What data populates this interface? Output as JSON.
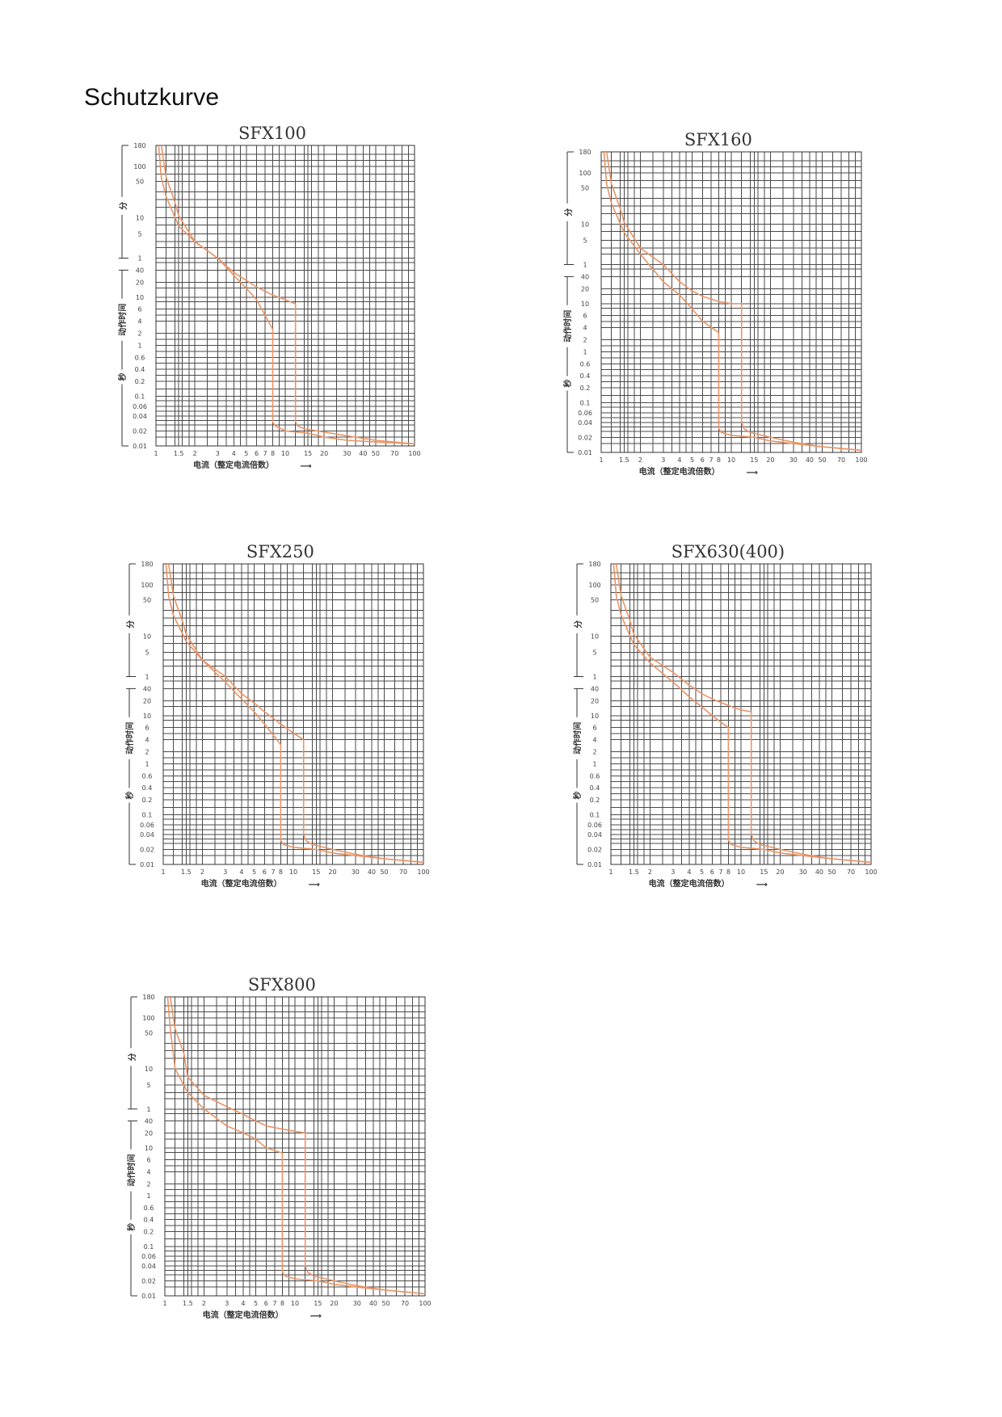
{
  "page": {
    "heading": "Schutzkurve"
  },
  "colors": {
    "curve": "#e89466",
    "grid": "#4a4a4a",
    "text": "#333333"
  },
  "axis_common": {
    "xlabel": "电流（整定电流倍数）",
    "xlabel_arrow": "⟶",
    "x_ticks": [
      {
        "v": 1,
        "label": "1"
      },
      {
        "v": 1.5,
        "label": "1.5"
      },
      {
        "v": 2,
        "label": "2"
      },
      {
        "v": 3,
        "label": "3"
      },
      {
        "v": 4,
        "label": "4"
      },
      {
        "v": 5,
        "label": "5"
      },
      {
        "v": 6,
        "label": "6"
      },
      {
        "v": 7,
        "label": "7"
      },
      {
        "v": 8,
        "label": "8"
      },
      {
        "v": 10,
        "label": "10"
      },
      {
        "v": 15,
        "label": "15"
      },
      {
        "v": 20,
        "label": "20"
      },
      {
        "v": 30,
        "label": "30"
      },
      {
        "v": 40,
        "label": "40"
      },
      {
        "v": 50,
        "label": "50"
      },
      {
        "v": 70,
        "label": "70"
      },
      {
        "v": 100,
        "label": "100"
      }
    ],
    "y_ticks": [
      {
        "label": "180",
        "unit": "min"
      },
      {
        "label": "100",
        "unit": "min"
      },
      {
        "label": "50",
        "unit": "min"
      },
      {
        "label": "10",
        "unit": "min"
      },
      {
        "label": "5",
        "unit": "min"
      },
      {
        "label": "1",
        "unit": "min"
      },
      {
        "label": "40",
        "unit": "s"
      },
      {
        "label": "20",
        "unit": "s"
      },
      {
        "label": "10",
        "unit": "s"
      },
      {
        "label": "6",
        "unit": "s"
      },
      {
        "label": "4",
        "unit": "s"
      },
      {
        "label": "2",
        "unit": "s"
      },
      {
        "label": "1",
        "unit": "s"
      },
      {
        "label": "0.6",
        "unit": "s"
      },
      {
        "label": "0.4",
        "unit": "s"
      },
      {
        "label": "0.2",
        "unit": "s"
      },
      {
        "label": "0.1",
        "unit": "s"
      },
      {
        "label": "0.06",
        "unit": "s"
      },
      {
        "label": "0.04",
        "unit": "s"
      },
      {
        "label": "0.02",
        "unit": "s"
      },
      {
        "label": "0.01",
        "unit": "s"
      }
    ],
    "ylabel_minutes": "分",
    "ylabel_action_time": "动作时间",
    "ylabel_seconds": "秒",
    "x_scale": "log",
    "y_scale": "log",
    "xlim": [
      1,
      100
    ],
    "ylim_seconds": [
      0.01,
      10800
    ]
  },
  "chart_data": [
    {
      "type": "line",
      "title": "SFX100",
      "series": [
        {
          "x": [
            1.05,
            1.1,
            1.2,
            1.5,
            2,
            3,
            4,
            5,
            6,
            8,
            8,
            8.4,
            10,
            15,
            20,
            30,
            50,
            100
          ],
          "y": [
            10800,
            3600,
            1500,
            420,
            180,
            60,
            30,
            15,
            9,
            2.5,
            0.03,
            0.025,
            0.02,
            0.018,
            0.015,
            0.013,
            0.012,
            0.011
          ]
        },
        {
          "x": [
            1.1,
            1.2,
            1.4,
            1.5,
            2,
            3,
            4,
            5,
            6,
            8,
            10,
            12,
            12,
            12.5,
            14,
            20,
            30,
            50,
            100
          ],
          "y": [
            10800,
            3600,
            1200,
            650,
            180,
            60,
            35,
            22,
            16,
            11,
            9,
            7.5,
            0.03,
            0.025,
            0.022,
            0.019,
            0.016,
            0.013,
            0.011
          ]
        }
      ]
    },
    {
      "type": "line",
      "title": "SFX160",
      "series": [
        {
          "x": [
            1.05,
            1.1,
            1.2,
            1.5,
            2,
            3,
            4,
            5,
            6,
            8,
            8,
            8.4,
            10,
            15,
            20,
            30,
            50,
            100
          ],
          "y": [
            10800,
            3600,
            1500,
            420,
            120,
            30,
            15,
            8,
            5,
            3,
            0.03,
            0.025,
            0.022,
            0.02,
            0.017,
            0.015,
            0.013,
            0.011
          ]
        },
        {
          "x": [
            1.1,
            1.2,
            1.4,
            1.5,
            2,
            3,
            4,
            5,
            6,
            8,
            10,
            12,
            12,
            12.5,
            14,
            20,
            30,
            50,
            100
          ],
          "y": [
            10800,
            3600,
            1200,
            650,
            180,
            60,
            30,
            18,
            14,
            11,
            10,
            10,
            0.04,
            0.03,
            0.025,
            0.02,
            0.016,
            0.013,
            0.011
          ]
        }
      ]
    },
    {
      "type": "line",
      "title": "SFX250",
      "series": [
        {
          "x": [
            1.05,
            1.1,
            1.2,
            1.5,
            2,
            3,
            4,
            5,
            6,
            8,
            8,
            8.4,
            10,
            15,
            20,
            30,
            50,
            100
          ],
          "y": [
            10800,
            3600,
            1500,
            480,
            180,
            50,
            22,
            12,
            7,
            3,
            0.03,
            0.025,
            0.022,
            0.02,
            0.017,
            0.015,
            0.013,
            0.011
          ]
        },
        {
          "x": [
            1.1,
            1.2,
            1.4,
            1.5,
            2,
            3,
            4,
            5,
            6,
            8,
            10,
            12,
            12,
            12.5,
            14,
            20,
            30,
            50,
            100
          ],
          "y": [
            10800,
            3600,
            1200,
            650,
            180,
            60,
            30,
            18,
            12,
            7,
            5,
            4,
            0.04,
            0.03,
            0.025,
            0.02,
            0.016,
            0.013,
            0.011
          ]
        }
      ]
    },
    {
      "type": "line",
      "title": "SFX630(400)",
      "series": [
        {
          "x": [
            1.05,
            1.1,
            1.2,
            1.5,
            2,
            3,
            4,
            5,
            6,
            8,
            8,
            8.4,
            10,
            15,
            20,
            30,
            50,
            100
          ],
          "y": [
            10800,
            3600,
            1500,
            420,
            150,
            50,
            25,
            15,
            10,
            6,
            0.03,
            0.025,
            0.022,
            0.02,
            0.017,
            0.015,
            0.013,
            0.011
          ]
        },
        {
          "x": [
            1.1,
            1.2,
            1.4,
            1.5,
            2,
            3,
            4,
            5,
            6,
            8,
            10,
            12,
            12,
            12.5,
            14,
            20,
            30,
            50,
            100
          ],
          "y": [
            10800,
            3600,
            1200,
            650,
            220,
            80,
            45,
            30,
            22,
            16,
            13,
            12,
            0.04,
            0.03,
            0.025,
            0.02,
            0.016,
            0.013,
            0.011
          ]
        }
      ]
    },
    {
      "type": "line",
      "title": "SFX800",
      "series": [
        {
          "x": [
            1.05,
            1.1,
            1.2,
            1.5,
            2,
            3,
            4,
            5,
            6,
            8,
            8,
            8.4,
            10,
            15,
            20,
            30,
            50,
            100
          ],
          "y": [
            10800,
            3600,
            600,
            180,
            60,
            30,
            20,
            15,
            10,
            8,
            0.03,
            0.025,
            0.022,
            0.02,
            0.017,
            0.015,
            0.013,
            0.011
          ]
        },
        {
          "x": [
            1.1,
            1.2,
            1.4,
            1.5,
            2,
            3,
            4,
            5,
            6,
            8,
            10,
            12,
            12,
            12.5,
            14,
            20,
            30,
            50,
            100
          ],
          "y": [
            10800,
            3600,
            1200,
            420,
            150,
            70,
            50,
            40,
            30,
            25,
            22,
            20,
            0.04,
            0.03,
            0.025,
            0.02,
            0.016,
            0.013,
            0.011
          ]
        }
      ]
    }
  ]
}
